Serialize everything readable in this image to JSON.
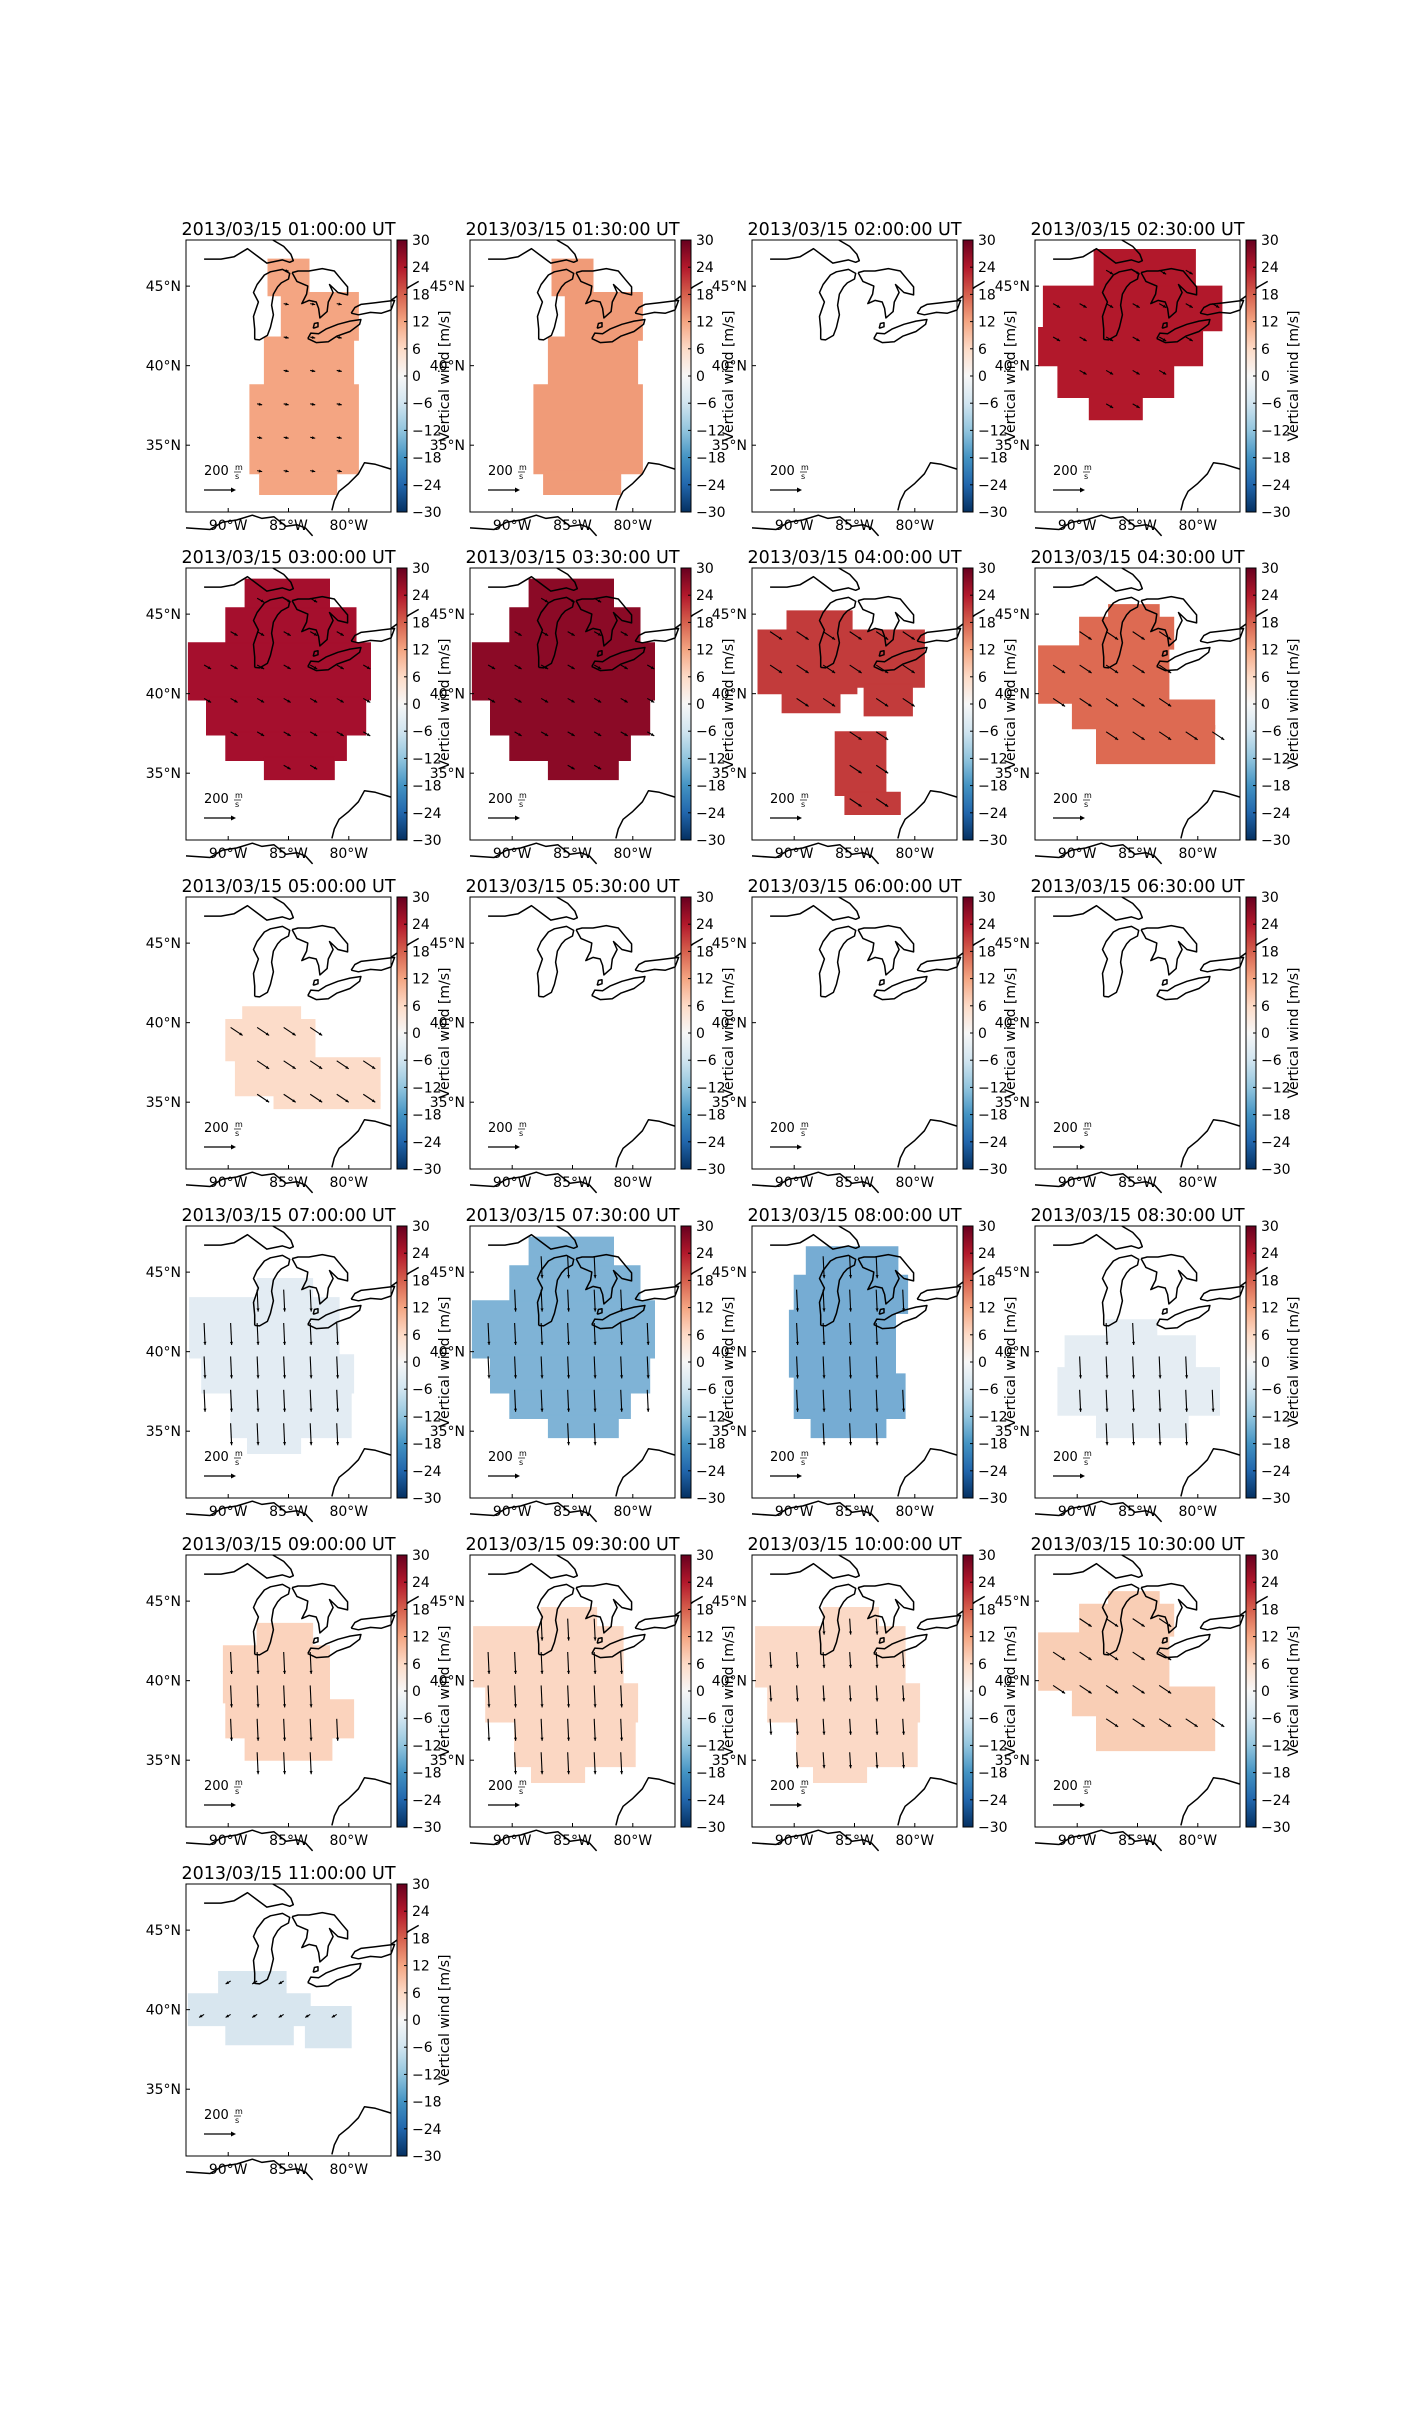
{
  "figure": {
    "colorbar_label": "Vertical wind [m/s]",
    "colorbar_ticks": [
      "30",
      "24",
      "18",
      "12",
      "6",
      "0",
      "−6",
      "−12",
      "−18",
      "−24",
      "−30"
    ],
    "lon_ticks": [
      "90°W",
      "85°W",
      "80°W"
    ],
    "lat_ticks": [
      "45°N",
      "40°N",
      "35°N"
    ],
    "quiver_key_value": "200",
    "quiver_key_unit_top": "m",
    "quiver_key_unit_bottom": "s",
    "colormap": "RdBu_r",
    "panels": [
      {
        "title": "2013/03/15 01:00:00 UT",
        "region": "north",
        "vertical_wind": 9,
        "color": "#f4a582",
        "arrows": "weak-east"
      },
      {
        "title": "2013/03/15 01:30:00 UT",
        "region": "north",
        "vertical_wind": 9,
        "color": "#f09b78",
        "arrows": "none"
      },
      {
        "title": "2013/03/15 02:00:00 UT",
        "region": "none",
        "vertical_wind": null,
        "color": "",
        "arrows": "none"
      },
      {
        "title": "2013/03/15 02:30:00 UT",
        "region": "wide-north",
        "vertical_wind": 27,
        "color": "#b2182b",
        "arrows": "weak-southeast"
      },
      {
        "title": "2013/03/15 03:00:00 UT",
        "region": "wide",
        "vertical_wind": 28,
        "color": "#a50f2d",
        "arrows": "weak-southeast"
      },
      {
        "title": "2013/03/15 03:30:00 UT",
        "region": "wide",
        "vertical_wind": 30,
        "color": "#8b0a26",
        "arrows": "weak-southeast"
      },
      {
        "title": "2013/03/15 04:00:00 UT",
        "region": "split",
        "vertical_wind": 24,
        "color": "#c23b3b",
        "arrows": "southeast"
      },
      {
        "title": "2013/03/15 04:30:00 UT",
        "region": "mid",
        "vertical_wind": 18,
        "color": "#dd6a52",
        "arrows": "southeast"
      },
      {
        "title": "2013/03/15 05:00:00 UT",
        "region": "blob",
        "vertical_wind": 4,
        "color": "#fcdcc9",
        "arrows": "southeast"
      },
      {
        "title": "2013/03/15 05:30:00 UT",
        "region": "none",
        "vertical_wind": null,
        "color": "",
        "arrows": "none"
      },
      {
        "title": "2013/03/15 06:00:00 UT",
        "region": "none",
        "vertical_wind": null,
        "color": "",
        "arrows": "none"
      },
      {
        "title": "2013/03/15 06:30:00 UT",
        "region": "none",
        "vertical_wind": null,
        "color": "",
        "arrows": "none"
      },
      {
        "title": "2013/03/15 07:00:00 UT",
        "region": "wide-south",
        "vertical_wind": -3,
        "color": "#e3ecf3",
        "arrows": "south-long"
      },
      {
        "title": "2013/03/15 07:30:00 UT",
        "region": "wide",
        "vertical_wind": -14,
        "color": "#7fb3d6",
        "arrows": "south-long"
      },
      {
        "title": "2013/03/15 08:00:00 UT",
        "region": "narrow",
        "vertical_wind": -15,
        "color": "#76acd3",
        "arrows": "south-long"
      },
      {
        "title": "2013/03/15 08:30:00 UT",
        "region": "mid-south",
        "vertical_wind": -3,
        "color": "#e5edf3",
        "arrows": "south-long"
      },
      {
        "title": "2013/03/15 09:00:00 UT",
        "region": "blob-south",
        "vertical_wind": 6,
        "color": "#fbd3bd",
        "arrows": "south-long"
      },
      {
        "title": "2013/03/15 09:30:00 UT",
        "region": "wide-south",
        "vertical_wind": 5,
        "color": "#fbd7c3",
        "arrows": "south-long"
      },
      {
        "title": "2013/03/15 10:00:00 UT",
        "region": "wide-south",
        "vertical_wind": 5,
        "color": "#fbd9c6",
        "arrows": "south"
      },
      {
        "title": "2013/03/15 10:30:00 UT",
        "region": "mid",
        "vertical_wind": 7,
        "color": "#f9ceb5",
        "arrows": "southeast"
      },
      {
        "title": "2013/03/15 11:00:00 UT",
        "region": "west",
        "vertical_wind": -2,
        "color": "#d8e6ef",
        "arrows": "weak-southwest"
      }
    ]
  }
}
